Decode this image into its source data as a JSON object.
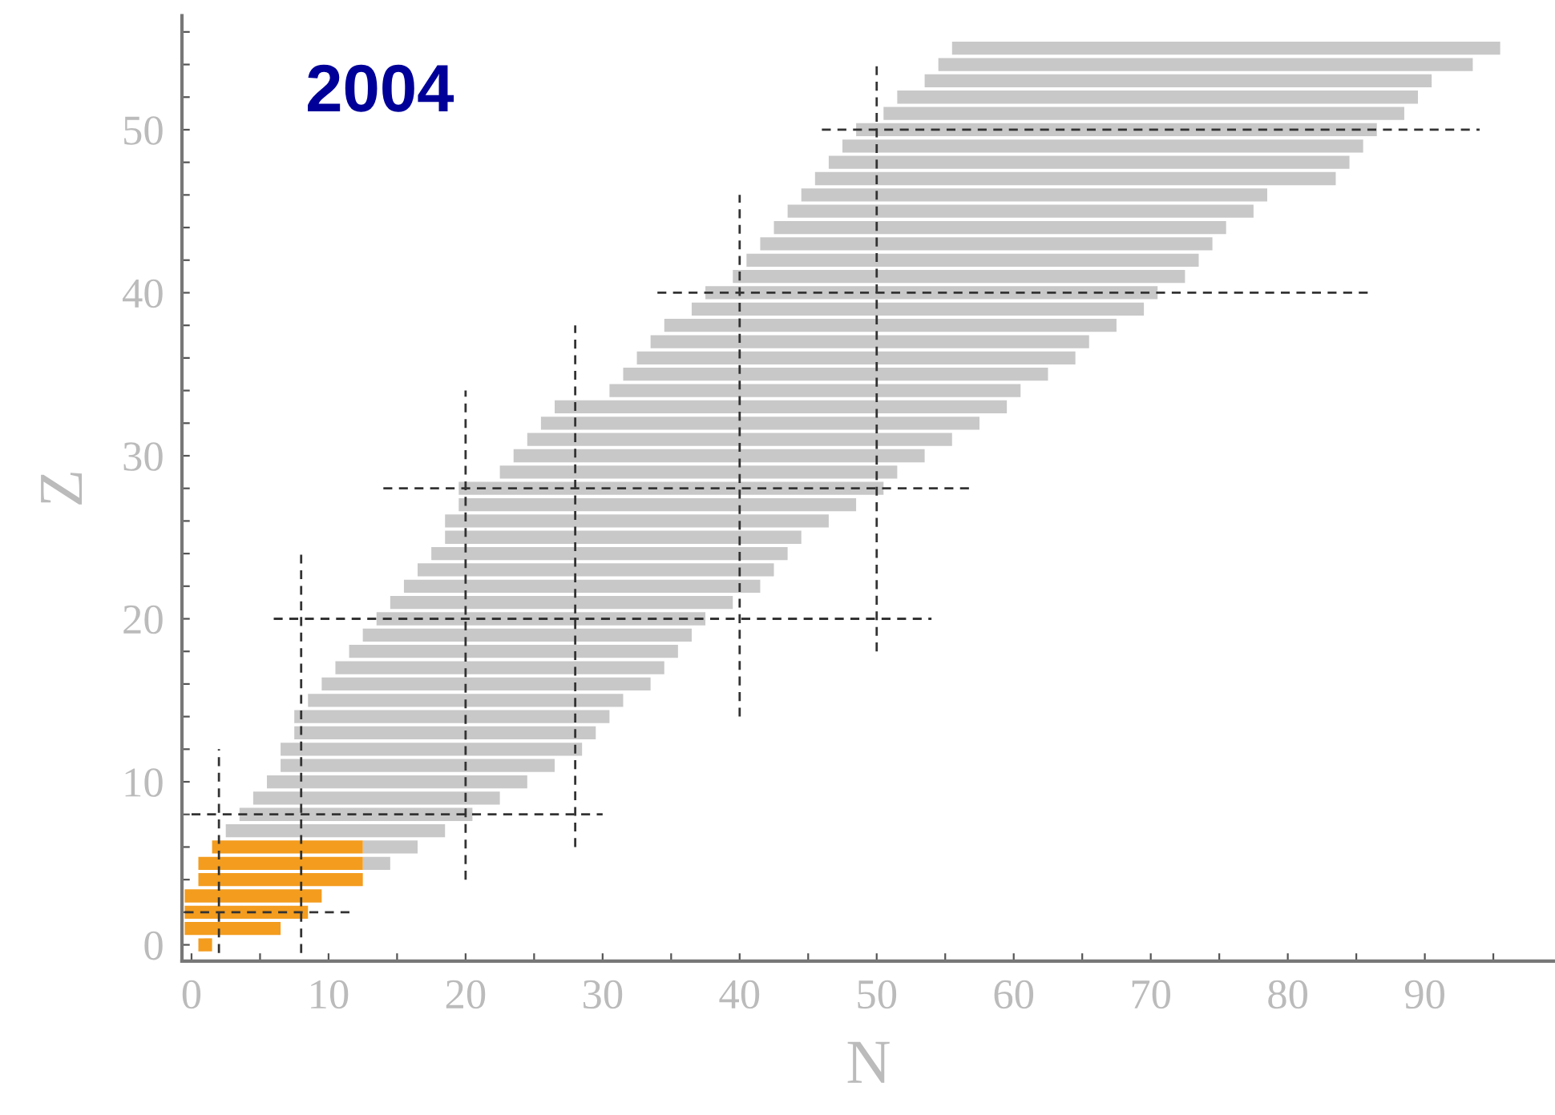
{
  "chart_data": {
    "type": "bar",
    "orientation": "horizontal",
    "title": "2004",
    "xlabel": "N",
    "ylabel": "Z",
    "xlim": [
      -0.7,
      99.5
    ],
    "ylim": [
      -1,
      57
    ],
    "xticks": [
      0,
      {
        "value": 5,
        "label": null
      },
      10,
      {
        "value": 15,
        "label": null
      },
      20,
      {
        "value": 25,
        "label": null
      },
      30,
      {
        "value": 35,
        "label": null
      },
      40,
      {
        "value": 45,
        "label": null
      },
      50,
      {
        "value": 55,
        "label": null
      },
      60,
      {
        "value": 65,
        "label": null
      },
      70,
      {
        "value": 75,
        "label": null
      },
      80,
      {
        "value": 85,
        "label": null
      },
      90,
      {
        "value": 95,
        "label": null
      }
    ],
    "yticks": [
      0,
      {
        "value": 2,
        "label": null
      },
      {
        "value": 4,
        "label": null
      },
      {
        "value": 6,
        "label": null
      },
      {
        "value": 8,
        "label": null
      },
      10,
      {
        "value": 12,
        "label": null
      },
      {
        "value": 14,
        "label": null
      },
      {
        "value": 16,
        "label": null
      },
      {
        "value": 18,
        "label": null
      },
      20,
      {
        "value": 22,
        "label": null
      },
      {
        "value": 24,
        "label": null
      },
      {
        "value": 26,
        "label": null
      },
      {
        "value": 28,
        "label": null
      },
      30,
      {
        "value": 32,
        "label": null
      },
      {
        "value": 34,
        "label": null
      },
      {
        "value": 36,
        "label": null
      },
      {
        "value": 38,
        "label": null
      },
      40,
      {
        "value": 42,
        "label": null
      },
      {
        "value": 44,
        "label": null
      },
      {
        "value": 46,
        "label": null
      },
      {
        "value": 48,
        "label": null
      },
      50,
      {
        "value": 52,
        "label": null
      },
      {
        "value": 54,
        "label": null
      },
      {
        "value": 56,
        "label": null
      }
    ],
    "series": [
      {
        "color": "#c8c8c8",
        "x": [
          5,
          6,
          7,
          8,
          9,
          10,
          11,
          12,
          13,
          14,
          15,
          16,
          17,
          18,
          19,
          20,
          21,
          22,
          23,
          24,
          25,
          26,
          27,
          28,
          29,
          30,
          31,
          32,
          33,
          34,
          35,
          36,
          37,
          38,
          39,
          40,
          41,
          42,
          43,
          44,
          45,
          46,
          47,
          48,
          49,
          50,
          51,
          52,
          53,
          54,
          55
        ],
        "base": [
          12.5,
          12.5,
          2.5,
          3.5,
          4.5,
          5.5,
          6.5,
          6.5,
          7.5,
          7.5,
          8.5,
          9.5,
          10.5,
          11.5,
          12.5,
          13.5,
          14.5,
          15.5,
          16.5,
          17.5,
          18.5,
          18.5,
          19.5,
          19.5,
          22.5,
          23.5,
          24.5,
          25.5,
          26.5,
          30.5,
          31.5,
          32.5,
          33.5,
          34.5,
          36.5,
          37.5,
          39.5,
          40.5,
          41.5,
          42.5,
          43.5,
          44.5,
          45.5,
          46.5,
          47.5,
          48.5,
          50.5,
          51.5,
          53.5,
          54.5,
          55.5
        ],
        "values": [
          2,
          4,
          16,
          17,
          18,
          19,
          20,
          22,
          22,
          23,
          23,
          24,
          24,
          24,
          24,
          24,
          25,
          26,
          26,
          26,
          26,
          28,
          29,
          31,
          29,
          30,
          31,
          32,
          33,
          30,
          31,
          32,
          32,
          33,
          33,
          33,
          33,
          33,
          33,
          33,
          34,
          34,
          38,
          38,
          38,
          38,
          38,
          38,
          37,
          39,
          40
        ]
      },
      {
        "color": "#f39c1e",
        "x": [
          0,
          1,
          2,
          3,
          4,
          5,
          6
        ],
        "base": [
          0.5,
          -0.5,
          -0.5,
          -0.5,
          0.5,
          0.5,
          1.5
        ],
        "values": [
          1,
          7,
          9,
          10,
          12,
          12,
          11
        ]
      },
      {
        "type": "line",
        "color": "#333333",
        "line_style": "dashed",
        "values": [
          -0.5,
          12
        ],
        "x": [
          2,
          2
        ]
      },
      {
        "type": "line",
        "color": "#333333",
        "line_style": "dashed",
        "values": [
          0,
          30
        ],
        "x": [
          8,
          8
        ]
      },
      {
        "type": "line",
        "color": "#333333",
        "line_style": "dashed",
        "values": [
          6,
          54
        ],
        "x": [
          20,
          20
        ]
      },
      {
        "type": "line",
        "color": "#333333",
        "line_style": "dashed",
        "values": [
          14,
          57
        ],
        "x": [
          28,
          28
        ]
      },
      {
        "type": "line",
        "color": "#333333",
        "line_style": "dashed",
        "values": [
          34,
          86
        ],
        "x": [
          40,
          40
        ]
      },
      {
        "type": "line",
        "color": "#333333",
        "line_style": "dashed",
        "values": [
          46,
          94
        ],
        "x": [
          50,
          50
        ]
      },
      {
        "type": "line",
        "color": "#333333",
        "line_style": "dashed",
        "values": [
          2,
          2
        ],
        "x": [
          -0.5,
          12
        ]
      },
      {
        "type": "line",
        "color": "#333333",
        "line_style": "dashed",
        "values": [
          8,
          8
        ],
        "x": [
          -0.5,
          24
        ]
      },
      {
        "type": "line",
        "color": "#333333",
        "line_style": "dashed",
        "values": [
          20,
          20
        ],
        "x": [
          4,
          34
        ]
      },
      {
        "type": "line",
        "color": "#333333",
        "line_style": "dashed",
        "values": [
          28,
          28
        ],
        "x": [
          6,
          38
        ]
      },
      {
        "type": "line",
        "color": "#333333",
        "line_style": "dashed",
        "values": [
          40,
          40
        ],
        "x": [
          14,
          46
        ]
      },
      {
        "type": "line",
        "color": "#333333",
        "line_style": "dashed",
        "values": [
          50,
          50
        ],
        "x": [
          18,
          54
        ]
      }
    ]
  }
}
